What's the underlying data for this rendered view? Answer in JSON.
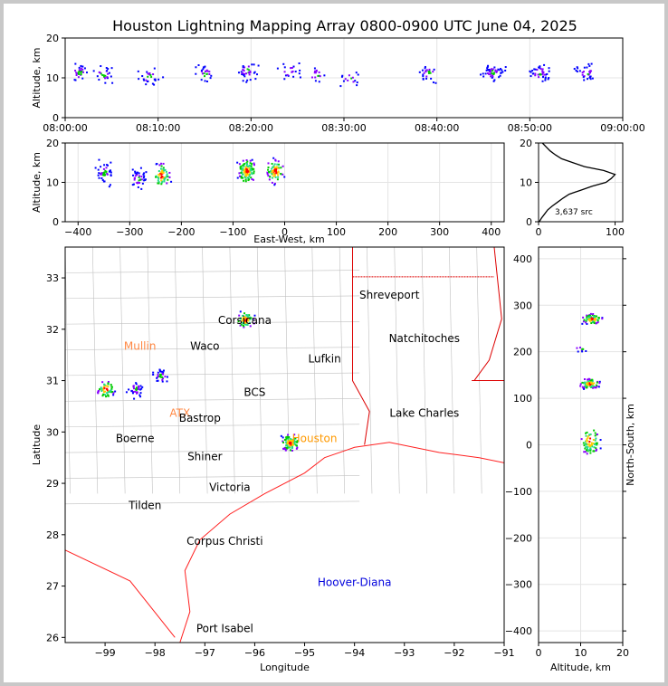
{
  "title": "Houston Lightning Mapping Array 0800-0900 UTC June 04, 2025",
  "colors": {
    "background": "#c8c8c8",
    "coast": "#ff2020",
    "state_border": "#dd0000",
    "county_border": "#c0c0c0",
    "grid": "#e4e4e4",
    "source_scale": [
      "#0000ff",
      "#8800ff",
      "#00cc00",
      "#22dd88",
      "#ffcc00",
      "#ff0000",
      "#000000"
    ]
  },
  "chart_data": [
    {
      "id": "time-height",
      "type": "scatter",
      "xlabel": "",
      "ylabel": "Altitude, km",
      "x_ticks": [
        "08:00:00",
        "08:10:00",
        "08:20:00",
        "08:30:00",
        "08:40:00",
        "08:50:00",
        "09:00:00"
      ],
      "y_ticks": [
        0,
        10,
        20
      ],
      "xlim_minutes": [
        0,
        60
      ],
      "ylim": [
        0,
        20
      ],
      "grid": true,
      "clusters": [
        {
          "t": 1.5,
          "alt": 11.5,
          "n": 30
        },
        {
          "t": 4,
          "alt": 11,
          "n": 25
        },
        {
          "t": 9,
          "alt": 10.5,
          "n": 25
        },
        {
          "t": 15,
          "alt": 11,
          "n": 25
        },
        {
          "t": 19.5,
          "alt": 12,
          "n": 35
        },
        {
          "t": 24,
          "alt": 12,
          "n": 20
        },
        {
          "t": 27,
          "alt": 11,
          "n": 15
        },
        {
          "t": 30.5,
          "alt": 10,
          "n": 15
        },
        {
          "t": 39,
          "alt": 11.5,
          "n": 25
        },
        {
          "t": 46,
          "alt": 11.5,
          "n": 50
        },
        {
          "t": 51,
          "alt": 11.5,
          "n": 40
        },
        {
          "t": 56,
          "alt": 11.5,
          "n": 30
        }
      ]
    },
    {
      "id": "east-west-altitude",
      "type": "scatter",
      "xlabel": "East-West, km",
      "ylabel": "Altitude, km",
      "x_ticks": [
        -400,
        -300,
        -200,
        -100,
        0,
        100,
        200,
        300,
        400
      ],
      "y_ticks": [
        0,
        10,
        20
      ],
      "xlim": [
        -425,
        425
      ],
      "ylim": [
        0,
        20
      ],
      "grid": true,
      "clusters": [
        {
          "x": -350,
          "alt": 12.5,
          "n": 45
        },
        {
          "x": -285,
          "alt": 11,
          "n": 40
        },
        {
          "x": -240,
          "alt": 12,
          "n": 60
        },
        {
          "x": -75,
          "alt": 13,
          "n": 110
        },
        {
          "x": -20,
          "alt": 13,
          "n": 70
        }
      ]
    },
    {
      "id": "altitude-histogram",
      "type": "line",
      "xlabel": "",
      "ylabel": "",
      "x_ticks": [
        0,
        100
      ],
      "y_ticks": [
        0,
        10,
        20
      ],
      "xlim": [
        0,
        110
      ],
      "ylim": [
        0,
        20
      ],
      "annotation": "3,637 src",
      "series": [
        {
          "altitude": [
            0,
            1,
            2,
            3,
            4,
            5,
            6,
            7,
            8,
            9,
            10,
            11,
            12,
            13,
            14,
            15,
            16,
            17,
            18,
            19,
            20
          ],
          "count": [
            1,
            4,
            8,
            12,
            18,
            25,
            32,
            40,
            55,
            70,
            88,
            95,
            100,
            85,
            60,
            45,
            30,
            22,
            15,
            10,
            5
          ]
        }
      ]
    },
    {
      "id": "plan-view",
      "type": "scatter",
      "xlabel": "Longitude",
      "ylabel": "Latitude",
      "x_ticks": [
        -99,
        -98,
        -97,
        -96,
        -95,
        -94,
        -93,
        -92,
        -91
      ],
      "y_ticks": [
        26,
        27,
        28,
        29,
        30,
        31,
        32,
        33
      ],
      "xlim": [
        -99.8,
        -91
      ],
      "ylim": [
        25.9,
        33.6
      ],
      "grid": true,
      "clusters": [
        {
          "lon": -99.0,
          "lat": 30.85,
          "n": 60
        },
        {
          "lon": -98.4,
          "lat": 30.85,
          "n": 35
        },
        {
          "lon": -97.9,
          "lat": 31.1,
          "n": 30
        },
        {
          "lon": -96.2,
          "lat": 32.2,
          "n": 60
        },
        {
          "lon": -95.3,
          "lat": 29.8,
          "n": 90
        }
      ],
      "cities": [
        {
          "name": "Corsicana",
          "lon": -96.2,
          "lat": 32.1,
          "color": "#000000"
        },
        {
          "name": "Shreveport",
          "lon": -93.3,
          "lat": 32.6,
          "color": "#000000"
        },
        {
          "name": "Mullin",
          "lon": -98.3,
          "lat": 31.6,
          "color": "#ff8844"
        },
        {
          "name": "Waco",
          "lon": -97.0,
          "lat": 31.6,
          "color": "#000000"
        },
        {
          "name": "Natchitoches",
          "lon": -92.6,
          "lat": 31.75,
          "color": "#000000"
        },
        {
          "name": "Lufkin",
          "lon": -94.6,
          "lat": 31.35,
          "color": "#000000"
        },
        {
          "name": "BCS",
          "lon": -96.0,
          "lat": 30.7,
          "color": "#000000"
        },
        {
          "name": "ATX",
          "lon": -97.5,
          "lat": 30.3,
          "color": "#ff8844"
        },
        {
          "name": "Bastrop",
          "lon": -97.1,
          "lat": 30.2,
          "color": "#000000"
        },
        {
          "name": "Lake Charles",
          "lon": -92.6,
          "lat": 30.3,
          "color": "#000000"
        },
        {
          "name": "Boerne",
          "lon": -98.4,
          "lat": 29.8,
          "color": "#000000"
        },
        {
          "name": "Houston",
          "lon": -94.8,
          "lat": 29.8,
          "color": "#ff9900"
        },
        {
          "name": "Shiner",
          "lon": -97.0,
          "lat": 29.45,
          "color": "#000000"
        },
        {
          "name": "Victoria",
          "lon": -96.5,
          "lat": 28.85,
          "color": "#000000"
        },
        {
          "name": "Tilden",
          "lon": -98.2,
          "lat": 28.5,
          "color": "#000000"
        },
        {
          "name": "Corpus Christi",
          "lon": -96.6,
          "lat": 27.8,
          "color": "#000000"
        },
        {
          "name": "Hoover-Diana",
          "lon": -94.0,
          "lat": 27.0,
          "color": "#0000dd"
        },
        {
          "name": "Port Isabel",
          "lon": -96.6,
          "lat": 26.1,
          "color": "#000000"
        }
      ]
    },
    {
      "id": "altitude-north-south",
      "type": "scatter",
      "xlabel": "Altitude, km",
      "ylabel": "North-South, km",
      "x_ticks": [
        0,
        10,
        20
      ],
      "y_ticks": [
        -400,
        -300,
        -200,
        -100,
        0,
        100,
        200,
        300,
        400
      ],
      "xlim": [
        0,
        20
      ],
      "ylim": [
        -425,
        425
      ],
      "grid": true,
      "clusters": [
        {
          "alt": 12.5,
          "ns": 272,
          "n": 70
        },
        {
          "alt": 10,
          "ns": 208,
          "n": 8
        },
        {
          "alt": 12,
          "ns": 133,
          "n": 90
        },
        {
          "alt": 12,
          "ns": 10,
          "n": 70
        }
      ]
    }
  ]
}
